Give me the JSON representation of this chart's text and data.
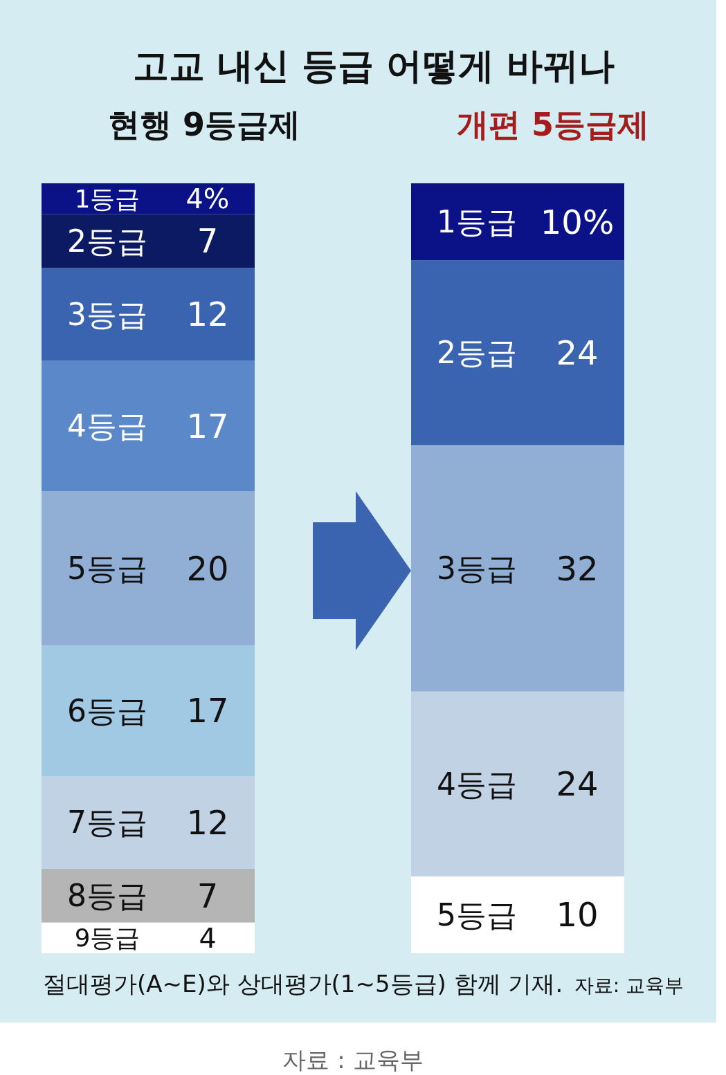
{
  "chart_data": {
    "type": "bar",
    "stacked": true,
    "title": "고교 내신 등급 어떻게 바뀌나",
    "categories": [
      "현행 9등급제",
      "개편 5등급제"
    ],
    "series": [
      {
        "name": "9등급",
        "values": [
          4,
          null
        ],
        "value_labels": [
          "4",
          null
        ],
        "colors": [
          "#ffffff",
          null
        ]
      },
      {
        "name": "8등급",
        "values": [
          7,
          null
        ],
        "value_labels": [
          "7",
          null
        ],
        "colors": [
          "#b5b5b5",
          null
        ]
      },
      {
        "name": "7등급",
        "values": [
          12,
          null
        ],
        "value_labels": [
          "12",
          null
        ],
        "colors": [
          "#c2d2e5",
          null
        ]
      },
      {
        "name": "6등급",
        "values": [
          17,
          null
        ],
        "value_labels": [
          "17",
          null
        ],
        "colors": [
          "#a2c9e3",
          null
        ]
      },
      {
        "name": "5등급",
        "values": [
          20,
          10
        ],
        "value_labels": [
          "20",
          "10"
        ],
        "colors": [
          "#91afd5",
          "#ffffff"
        ]
      },
      {
        "name": "4등급",
        "values": [
          17,
          24
        ],
        "value_labels": [
          "17",
          "24"
        ],
        "colors": [
          "#5b88c8",
          "#c2d2e5"
        ]
      },
      {
        "name": "3등급",
        "values": [
          12,
          32
        ],
        "value_labels": [
          "12",
          "32"
        ],
        "colors": [
          "#3a63b0",
          "#91afd5"
        ]
      },
      {
        "name": "2등급",
        "values": [
          7,
          24
        ],
        "value_labels": [
          "7",
          "24"
        ],
        "colors": [
          "#0b1a62",
          "#3a63b0"
        ]
      },
      {
        "name": "1등급",
        "values": [
          4,
          10
        ],
        "value_labels": [
          "4%",
          "10%"
        ],
        "colors": [
          "#0b1288",
          "#0b1288"
        ]
      }
    ],
    "annotations": [
      "절대평가(A~E)와 상대평가(1~5등급) 함께 기재.",
      "자료: 교육부",
      "자료 : 교육부"
    ]
  }
}
